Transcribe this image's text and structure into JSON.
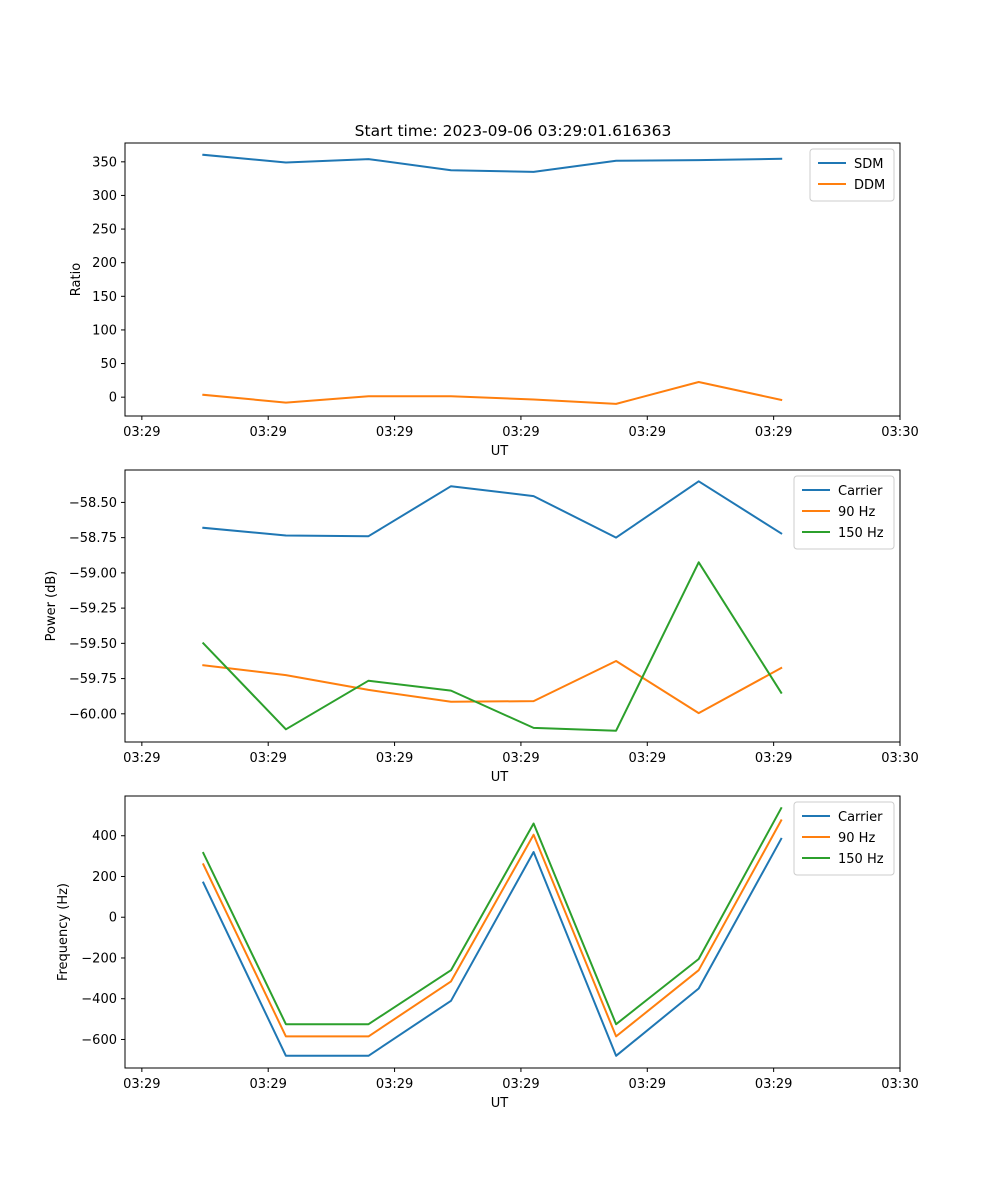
{
  "figure": {
    "title": "Start time: 2023-09-06 03:29:01.616363"
  },
  "chart_data": [
    {
      "type": "line",
      "id": "ratio",
      "xlabel": "UT",
      "ylabel": "Ratio",
      "xlim": [
        -0.2,
        9.0
      ],
      "ylim": [
        -28,
        378
      ],
      "x_ticks": [
        0,
        1.5,
        3,
        4.5,
        6,
        7.5,
        9
      ],
      "x_tick_labels": [
        "03:29",
        "03:29",
        "03:29",
        "03:29",
        "03:29",
        "03:29",
        "03:30"
      ],
      "y_ticks": [
        0,
        50,
        100,
        150,
        200,
        250,
        300,
        350
      ],
      "y_tick_labels": [
        "0",
        "50",
        "100",
        "150",
        "200",
        "250",
        "300",
        "350"
      ],
      "x": [
        0.73,
        1.71,
        2.69,
        3.67,
        4.65,
        5.63,
        6.61,
        7.59
      ],
      "series": [
        {
          "name": "SDM",
          "color": "#1f77b4",
          "values": [
            360.5,
            349,
            354,
            337.5,
            335,
            351.5,
            352.5,
            354.5
          ]
        },
        {
          "name": "DDM",
          "color": "#ff7f0e",
          "values": [
            3.5,
            -8,
            1.5,
            1.5,
            -3.5,
            -10,
            22.5,
            -4
          ]
        }
      ],
      "legend_position": "upper-right"
    },
    {
      "type": "line",
      "id": "power",
      "xlabel": "UT",
      "ylabel": "Power (dB)",
      "xlim": [
        -0.2,
        9.0
      ],
      "ylim": [
        -60.2,
        -58.27
      ],
      "x_ticks": [
        0,
        1.5,
        3,
        4.5,
        6,
        7.5,
        9
      ],
      "x_tick_labels": [
        "03:29",
        "03:29",
        "03:29",
        "03:29",
        "03:29",
        "03:29",
        "03:30"
      ],
      "y_ticks": [
        -60.0,
        -59.75,
        -59.5,
        -59.25,
        -59.0,
        -58.75,
        -58.5
      ],
      "y_tick_labels": [
        "−60.00",
        "−59.75",
        "−59.50",
        "−59.25",
        "−59.00",
        "−58.75",
        "−58.50"
      ],
      "x": [
        0.73,
        1.71,
        2.69,
        3.67,
        4.65,
        5.63,
        6.61,
        7.59
      ],
      "series": [
        {
          "name": "Carrier",
          "color": "#1f77b4",
          "values": [
            -58.68,
            -58.735,
            -58.74,
            -58.385,
            -58.455,
            -58.75,
            -58.35,
            -58.72
          ]
        },
        {
          "name": "90 Hz",
          "color": "#ff7f0e",
          "values": [
            -59.655,
            -59.725,
            -59.83,
            -59.915,
            -59.91,
            -59.625,
            -59.995,
            -59.675
          ]
        },
        {
          "name": "150 Hz",
          "color": "#2ca02c",
          "values": [
            -59.5,
            -60.11,
            -59.765,
            -59.835,
            -60.1,
            -60.12,
            -58.925,
            -59.85
          ]
        }
      ],
      "legend_position": "upper-right"
    },
    {
      "type": "line",
      "id": "frequency",
      "xlabel": "UT",
      "ylabel": "Frequency (Hz)",
      "xlim": [
        -0.2,
        9.0
      ],
      "ylim": [
        -740,
        595
      ],
      "x_ticks": [
        0,
        1.5,
        3,
        4.5,
        6,
        7.5,
        9
      ],
      "x_tick_labels": [
        "03:29",
        "03:29",
        "03:29",
        "03:29",
        "03:29",
        "03:29",
        "03:30"
      ],
      "y_ticks": [
        -600,
        -400,
        -200,
        0,
        200,
        400
      ],
      "y_tick_labels": [
        "−600",
        "−400",
        "−200",
        "0",
        "200",
        "400"
      ],
      "x": [
        0.73,
        1.71,
        2.69,
        3.67,
        4.65,
        5.63,
        6.61,
        7.59
      ],
      "series": [
        {
          "name": "Carrier",
          "color": "#1f77b4",
          "values": [
            170,
            -680,
            -680,
            -410,
            320,
            -680,
            -350,
            385
          ]
        },
        {
          "name": "90 Hz",
          "color": "#ff7f0e",
          "values": [
            260,
            -585,
            -585,
            -315,
            405,
            -585,
            -260,
            475
          ]
        },
        {
          "name": "150 Hz",
          "color": "#2ca02c",
          "values": [
            315,
            -525,
            -525,
            -260,
            460,
            -525,
            -205,
            535
          ]
        }
      ],
      "legend_position": "upper-right"
    }
  ]
}
